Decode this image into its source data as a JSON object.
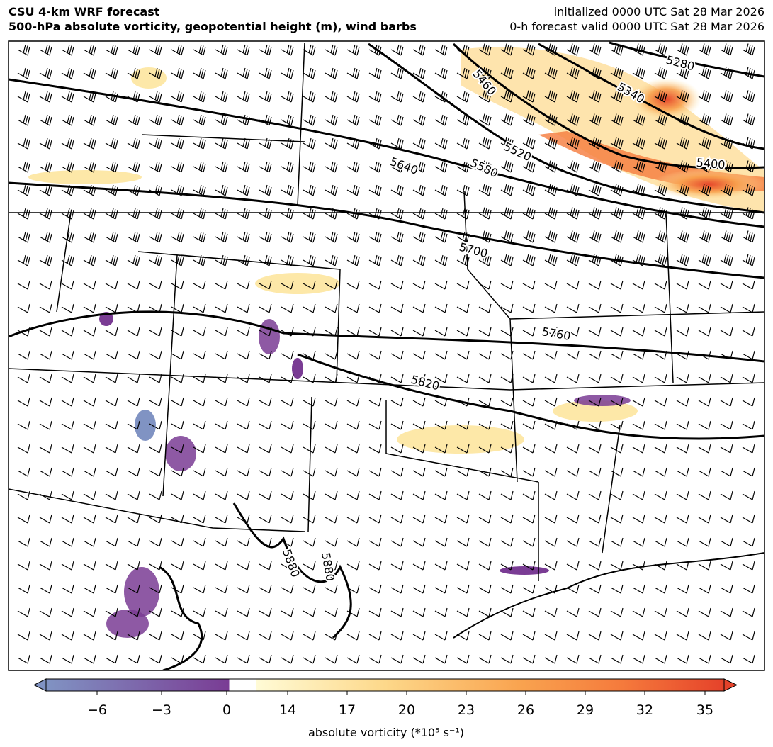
{
  "header": {
    "title": "CSU 4-km WRF forecast",
    "subtitle": "500-hPa absolute vorticity, geopotential height (m), wind barbs",
    "initialized": "initialized 0000 UTC Sat 28 Mar 2026",
    "valid": "0-h forecast valid 0000 UTC Sat 28 Mar 2026"
  },
  "map": {
    "contour_labels": [
      "5280",
      "5340",
      "5400",
      "5460",
      "5520",
      "5580",
      "5640",
      "5700",
      "5760",
      "5820",
      "5880",
      "5880"
    ]
  },
  "colorbar": {
    "ticks": [
      -6,
      -3,
      0,
      14,
      17,
      20,
      23,
      26,
      29,
      32,
      35
    ],
    "label": "absolute vorticity (*10⁵ s⁻¹)"
  }
}
